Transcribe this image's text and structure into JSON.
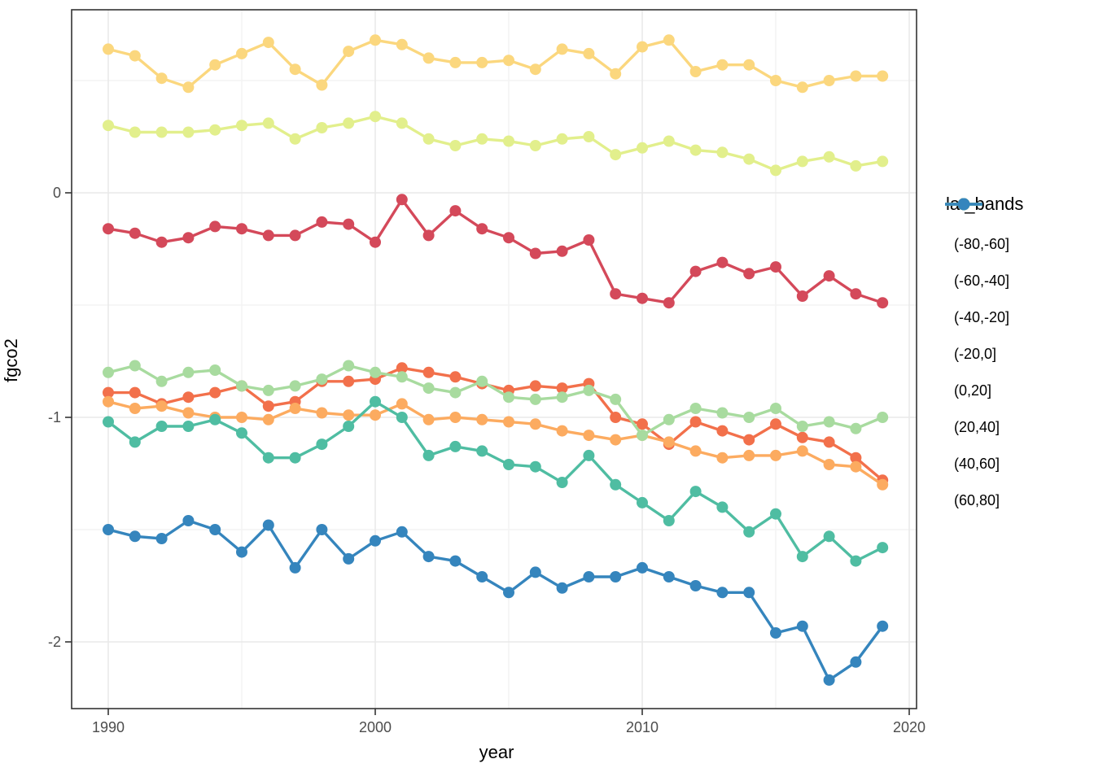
{
  "chart_data": {
    "type": "line",
    "title": "",
    "xlabel": "year",
    "ylabel": "fgco2",
    "legend_title": "lat_bands",
    "legend_position": "right",
    "grid": true,
    "x_ticks": [
      1990,
      2000,
      2010,
      2020
    ],
    "x_minor_ticks": [
      1995,
      2005,
      2015
    ],
    "y_ticks": [
      0,
      -1,
      -2
    ],
    "y_minor_ticks": [
      0.5,
      -0.5,
      -1.5
    ],
    "xlim": [
      1988.6,
      2020.3
    ],
    "ylim": [
      -2.33,
      0.82
    ],
    "x": [
      1990,
      1991,
      1992,
      1993,
      1994,
      1995,
      1996,
      1997,
      1998,
      1999,
      2000,
      2001,
      2002,
      2003,
      2004,
      2005,
      2006,
      2007,
      2008,
      2009,
      2010,
      2011,
      2012,
      2013,
      2014,
      2015,
      2016,
      2017,
      2018,
      2019
    ],
    "series": [
      {
        "name": "(-80,-60]",
        "color": "#d4495a",
        "values": [
          -0.16,
          -0.18,
          -0.22,
          -0.2,
          -0.15,
          -0.16,
          -0.19,
          -0.19,
          -0.13,
          -0.14,
          -0.22,
          -0.03,
          -0.19,
          -0.08,
          -0.16,
          -0.2,
          -0.27,
          -0.26,
          -0.21,
          -0.45,
          -0.47,
          -0.49,
          -0.35,
          -0.31,
          -0.36,
          -0.33,
          -0.46,
          -0.37,
          -0.45,
          -0.49
        ]
      },
      {
        "name": "(-60,-40]",
        "color": "#f2704b",
        "values": [
          -0.89,
          -0.89,
          -0.94,
          -0.91,
          -0.89,
          -0.86,
          -0.95,
          -0.93,
          -0.84,
          -0.84,
          -0.83,
          -0.78,
          -0.8,
          -0.82,
          -0.85,
          -0.88,
          -0.86,
          -0.87,
          -0.85,
          -1.0,
          -1.03,
          -1.12,
          -1.02,
          -1.06,
          -1.1,
          -1.03,
          -1.09,
          -1.11,
          -1.18,
          -1.28
        ]
      },
      {
        "name": "(-40,-20]",
        "color": "#fcab60",
        "values": [
          -0.93,
          -0.96,
          -0.95,
          -0.98,
          -1.0,
          -1.0,
          -1.01,
          -0.96,
          -0.98,
          -0.99,
          -0.99,
          -0.94,
          -1.01,
          -1.0,
          -1.01,
          -1.02,
          -1.03,
          -1.06,
          -1.08,
          -1.1,
          -1.08,
          -1.11,
          -1.15,
          -1.18,
          -1.17,
          -1.17,
          -1.15,
          -1.21,
          -1.22,
          -1.3
        ]
      },
      {
        "name": "(-20,0]",
        "color": "#fbd77e",
        "values": [
          0.64,
          0.61,
          0.51,
          0.47,
          0.57,
          0.62,
          0.67,
          0.55,
          0.48,
          0.63,
          0.68,
          0.66,
          0.6,
          0.58,
          0.58,
          0.59,
          0.55,
          0.64,
          0.62,
          0.53,
          0.65,
          0.68,
          0.54,
          0.57,
          0.57,
          0.5,
          0.47,
          0.5,
          0.52,
          0.52
        ]
      },
      {
        "name": "(0,20]",
        "color": "#e2ef8c",
        "values": [
          0.3,
          0.27,
          0.27,
          0.27,
          0.28,
          0.3,
          0.31,
          0.24,
          0.29,
          0.31,
          0.34,
          0.31,
          0.24,
          0.21,
          0.24,
          0.23,
          0.21,
          0.24,
          0.25,
          0.17,
          0.2,
          0.23,
          0.19,
          0.18,
          0.15,
          0.1,
          0.14,
          0.16,
          0.12,
          0.14
        ]
      },
      {
        "name": "(20,40]",
        "color": "#a8db9f",
        "values": [
          -0.8,
          -0.77,
          -0.84,
          -0.8,
          -0.79,
          -0.86,
          -0.88,
          -0.86,
          -0.83,
          -0.77,
          -0.8,
          -0.82,
          -0.87,
          -0.89,
          -0.84,
          -0.91,
          -0.92,
          -0.91,
          -0.88,
          -0.92,
          -1.08,
          -1.01,
          -0.96,
          -0.98,
          -1.0,
          -0.96,
          -1.04,
          -1.02,
          -1.05,
          -1.0
        ]
      },
      {
        "name": "(40,60]",
        "color": "#4fbda2",
        "values": [
          -1.02,
          -1.11,
          -1.04,
          -1.04,
          -1.01,
          -1.07,
          -1.18,
          -1.18,
          -1.12,
          -1.04,
          -0.93,
          -1.0,
          -1.17,
          -1.13,
          -1.15,
          -1.21,
          -1.22,
          -1.29,
          -1.17,
          -1.3,
          -1.38,
          -1.46,
          -1.33,
          -1.4,
          -1.51,
          -1.43,
          -1.62,
          -1.53,
          -1.64,
          -1.58
        ]
      },
      {
        "name": "(60,80]",
        "color": "#3585bd",
        "values": [
          -1.5,
          -1.53,
          -1.54,
          -1.46,
          -1.5,
          -1.6,
          -1.48,
          -1.67,
          -1.5,
          -1.63,
          -1.55,
          -1.51,
          -1.62,
          -1.64,
          -1.71,
          -1.78,
          -1.69,
          -1.76,
          -1.71,
          -1.71,
          -1.67,
          -1.71,
          -1.75,
          -1.78,
          -1.78,
          -1.96,
          -1.93,
          -2.17,
          -2.09,
          -1.93
        ]
      }
    ]
  },
  "axis_tick_labels": {
    "x": [
      "1990",
      "2000",
      "2010",
      "2020"
    ],
    "y": [
      "0",
      "-1",
      "-2"
    ]
  }
}
